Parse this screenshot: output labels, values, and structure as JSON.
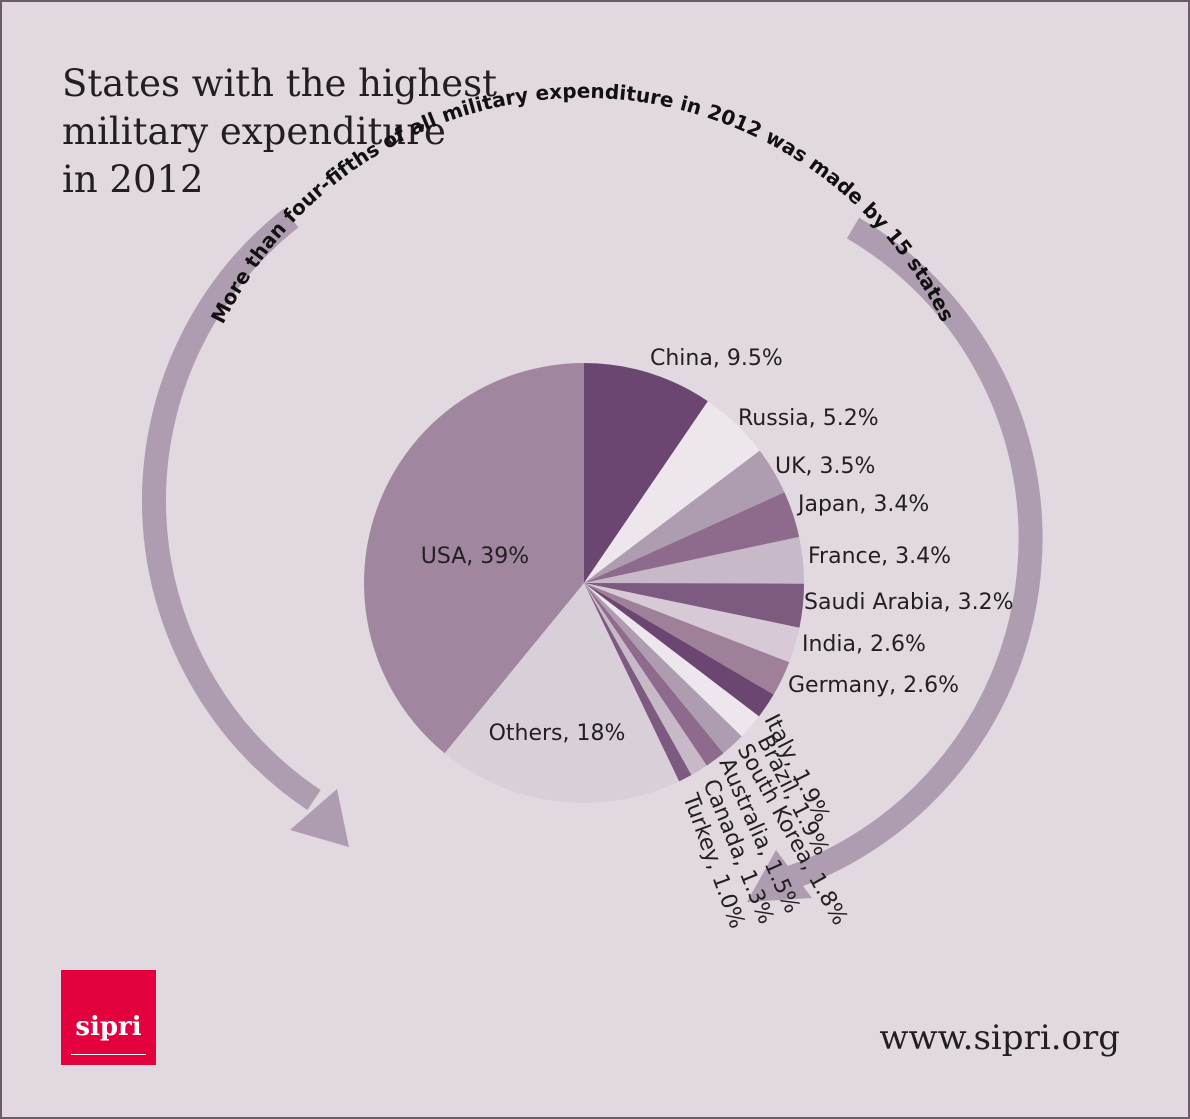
{
  "title": {
    "lines": [
      "States with the highest",
      "military expenditure",
      "in 2012"
    ]
  },
  "annotation": "More than four-fifths of all military expenditure in 2012 was made by 15 states",
  "chart_data": {
    "type": "pie",
    "title": "States with the highest military expenditure in 2012",
    "unit": "%",
    "slices": [
      {
        "label": "China",
        "display": "China, 9.5%",
        "value": 9.5,
        "color": "#6b4670"
      },
      {
        "label": "Russia",
        "display": "Russia, 5.2%",
        "value": 5.2,
        "color": "#ede6ec"
      },
      {
        "label": "UK",
        "display": "UK, 3.5%",
        "value": 3.5,
        "color": "#ae9cb0"
      },
      {
        "label": "Japan",
        "display": "Japan, 3.4%",
        "value": 3.4,
        "color": "#8e6a8d"
      },
      {
        "label": "France",
        "display": "France, 3.4%",
        "value": 3.4,
        "color": "#c8b9c8"
      },
      {
        "label": "Saudi Arabia",
        "display": "Saudi Arabia, 3.2%",
        "value": 3.2,
        "color": "#7d5a7f"
      },
      {
        "label": "India",
        "display": "India, 2.6%",
        "value": 2.6,
        "color": "#d7cad6"
      },
      {
        "label": "Germany",
        "display": "Germany, 2.6%",
        "value": 2.6,
        "color": "#9e8099"
      },
      {
        "label": "Italy",
        "display": "Italy, 1.9%",
        "value": 1.9,
        "color": "#6b4670"
      },
      {
        "label": "Brazil",
        "display": "Brazil, 1.9%",
        "value": 1.9,
        "color": "#ede6ec"
      },
      {
        "label": "South Korea",
        "display": "South Korea, 1.8%",
        "value": 1.8,
        "color": "#ae9cb0"
      },
      {
        "label": "Australia",
        "display": "Australia, 1.5%",
        "value": 1.5,
        "color": "#8e6a8d"
      },
      {
        "label": "Canada",
        "display": "Canada, 1.3%",
        "value": 1.3,
        "color": "#c8b9c8"
      },
      {
        "label": "Turkey",
        "display": "Turkey, 1.0%",
        "value": 1.0,
        "color": "#7d5a7f"
      },
      {
        "label": "Others",
        "display": "Others, 18%",
        "value": 18,
        "color": "#d9cfd9"
      },
      {
        "label": "USA",
        "display": "USA, 39%",
        "value": 39,
        "color": "#a0879f"
      }
    ]
  },
  "colors": {
    "background": "#e1d8e0",
    "border": "#6e5a6d",
    "arrow": "#ae9db0",
    "logo": "#e2003d"
  },
  "logo": {
    "text": "sipri"
  },
  "footer": {
    "url": "www.sipri.org"
  }
}
